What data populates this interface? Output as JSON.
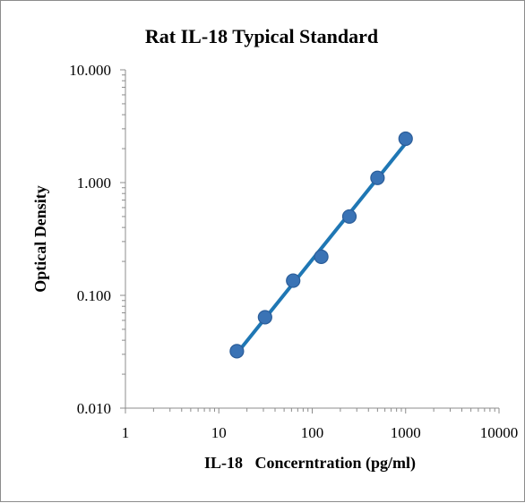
{
  "chart_data": {
    "type": "scatter",
    "title": "Rat IL-18 Typical Standard",
    "xlabel": "IL-18   Concerntration (pg/ml)",
    "ylabel": "Optical Density",
    "x_scale": "log",
    "y_scale": "log",
    "xlim": [
      1,
      10000
    ],
    "ylim": [
      0.01,
      10
    ],
    "x_ticks": [
      "1",
      "10",
      "100",
      "1000",
      "10000"
    ],
    "y_ticks": [
      "0.010",
      "0.100",
      "1.000",
      "10.000"
    ],
    "grid": false,
    "legend": "none",
    "series": [
      {
        "x": [
          15.6,
          31.25,
          62.5,
          125,
          250,
          500,
          1000
        ],
        "y": [
          0.032,
          0.064,
          0.135,
          0.22,
          0.5,
          1.1,
          2.45
        ],
        "marker_color": "#3a73b5",
        "line_color": "#1f77b4",
        "trendline": true
      }
    ]
  }
}
